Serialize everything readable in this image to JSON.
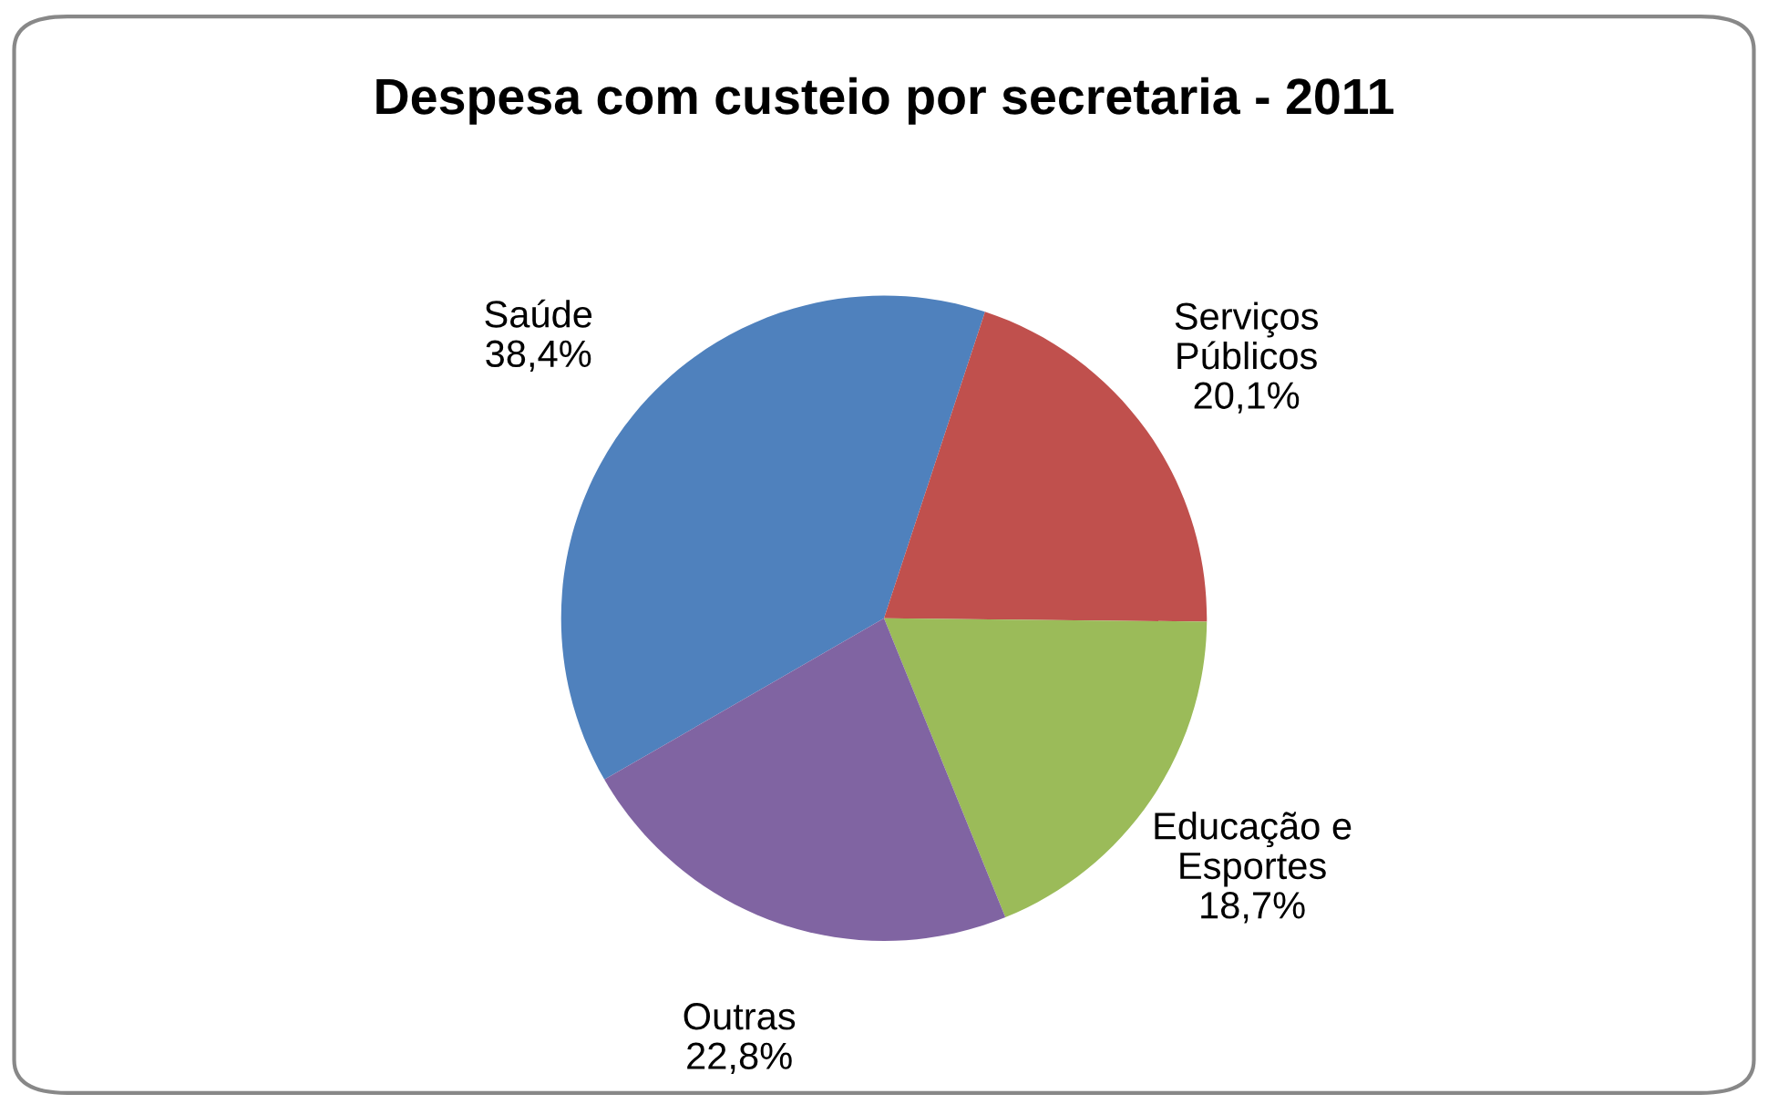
{
  "chart_data": {
    "type": "pie",
    "title": "Despesa com custeio por secretaria - 2011",
    "categories": [
      "Saúde",
      "Serviços\nPúblicos",
      "Educação e\nEsportes",
      "Outras"
    ],
    "values": [
      38.4,
      20.1,
      18.7,
      22.8
    ],
    "value_labels": [
      "38,4%",
      "20,1%",
      "18,7%",
      "22,8%"
    ],
    "colors": [
      "#4f81bd",
      "#c0504d",
      "#9bbb59",
      "#8064a2"
    ],
    "legend": false
  }
}
